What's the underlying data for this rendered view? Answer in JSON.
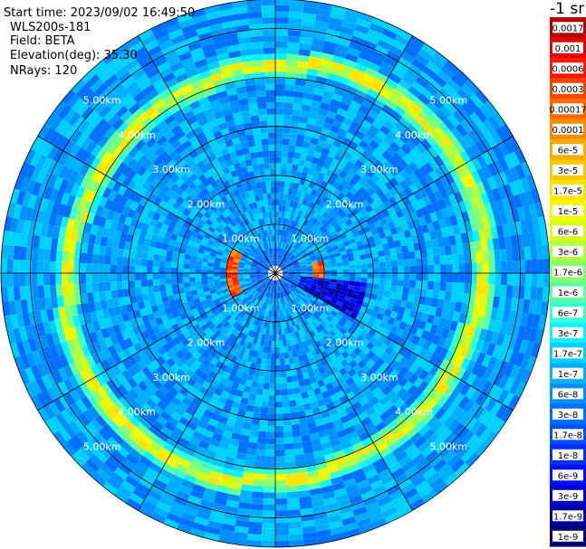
{
  "header": {
    "start_time": "Start time: 2023/09/02 16:49:50",
    "instrument": "WLS200s-181",
    "field": "Field: BETA",
    "elevation": "Elevation(deg): 35.30",
    "nrays": "NRays: 120"
  },
  "colorbar": {
    "title": "-1 sr",
    "ticks": [
      "0.0017",
      "0.001",
      "0.0006",
      "0.0003",
      "0.00017",
      "0.0001",
      "6e-5",
      "3e-5",
      "1.7e-5",
      "1e-5",
      "6e-6",
      "3e-6",
      "1.7e-6",
      "1e-6",
      "6e-7",
      "3e-7",
      "1.7e-7",
      "1e-7",
      "6e-8",
      "3e-8",
      "1.7e-8",
      "1e-8",
      "6e-9",
      "3e-9",
      "1.7e-9",
      "1e-9"
    ],
    "colors": [
      "#b00000",
      "#e00000",
      "#ff1800",
      "#ff4000",
      "#ff6a00",
      "#ff8c00",
      "#ffab00",
      "#ffc800",
      "#ffe400",
      "#f4f800",
      "#d8ff10",
      "#b0ff40",
      "#88ff70",
      "#60ffa0",
      "#38ffd0",
      "#10f0ff",
      "#00d0ff",
      "#00b0ff",
      "#0090ff",
      "#0070ff",
      "#0050ff",
      "#0030ff",
      "#0010ff",
      "#0000d0",
      "#0000a0",
      "#000070"
    ]
  },
  "chart_data": {
    "type": "heatmap",
    "projection": "polar-ppi",
    "title": "",
    "field": "BETA",
    "units": "-1 sr",
    "nrays": 120,
    "range_rings_km": [
      1.0,
      2.0,
      3.0,
      4.0,
      5.0
    ],
    "range_ring_labels": [
      "1.00km",
      "2.00km",
      "3.00km",
      "4.00km",
      "5.00km"
    ],
    "max_range_km": 5.6,
    "azimuth_spokes_deg": [
      0,
      30,
      60,
      90,
      120,
      150,
      180,
      210,
      240,
      270,
      300,
      330
    ],
    "background_level": "3e-8",
    "features": [
      {
        "name": "aerosol-layer-ring",
        "range_km": 4.25,
        "level": "3e-5 to 1e-6"
      },
      {
        "name": "near-range-return",
        "range_km": 0.9,
        "level": "0.0006 to 0.00017"
      },
      {
        "name": "low-signal-sector",
        "azimuth_deg": [
          95,
          120
        ],
        "level": "1.7e-8 to 1e-9"
      }
    ],
    "grid": true
  }
}
